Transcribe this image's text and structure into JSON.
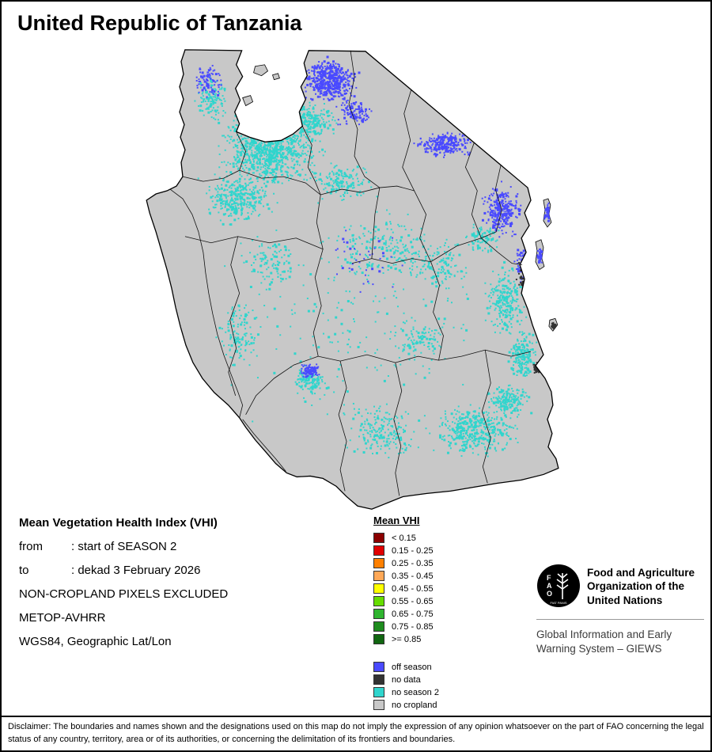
{
  "page": {
    "title": "United Republic of Tanzania"
  },
  "info": {
    "heading": "Mean Vegetation Health Index (VHI)",
    "lines": [
      {
        "label": "from",
        "value": ": start of SEASON 2"
      },
      {
        "label": "to",
        "value": ": dekad 3 February 2026"
      },
      {
        "label": "",
        "value": "NON-CROPLAND PIXELS EXCLUDED"
      },
      {
        "label": "",
        "value": "METOP-AVHRR"
      },
      {
        "label": "",
        "value": "WGS84, Geographic Lat/Lon"
      }
    ]
  },
  "legend": {
    "title": "Mean VHI",
    "scale": [
      {
        "color": "#8B0000",
        "label": "< 0.15"
      },
      {
        "color": "#E00000",
        "label": "0.15 - 0.25"
      },
      {
        "color": "#FF8000",
        "label": "0.25 - 0.35"
      },
      {
        "color": "#FFA857",
        "label": "0.35 - 0.45"
      },
      {
        "color": "#FFFF00",
        "label": "0.45 - 0.55"
      },
      {
        "color": "#66DD00",
        "label": "0.55 - 0.65"
      },
      {
        "color": "#2FB52F",
        "label": "0.65 - 0.75"
      },
      {
        "color": "#1E8C1E",
        "label": "0.75 - 0.85"
      },
      {
        "color": "#116611",
        "label": ">= 0.85"
      }
    ],
    "categories": [
      {
        "color": "#4A4AFF",
        "label": "off season"
      },
      {
        "color": "#333333",
        "label": "no data"
      },
      {
        "color": "#30D5CD",
        "label": "no season 2"
      },
      {
        "color": "#C8C8C8",
        "label": "no cropland"
      }
    ]
  },
  "map": {
    "land_color": "#C8C8C8",
    "season2_color": "#30D5CD",
    "offseason_color": "#4A4AFF",
    "nodata_color": "#333333"
  },
  "fao": {
    "logo_text": "FAO",
    "org_lines": [
      "Food and Agriculture",
      "Organization of the",
      "United Nations"
    ],
    "giews_lines": [
      "Global Information and Early",
      "Warning System – GIEWS"
    ]
  },
  "disclaimer": "Disclaimer: The boundaries and names shown and the designations used on this map do not imply the expression of any opinion whatsoever on the part of FAO concerning the legal status of any country, territory, area or of its authorities, or concerning the delimitation of its frontiers and boundaries."
}
